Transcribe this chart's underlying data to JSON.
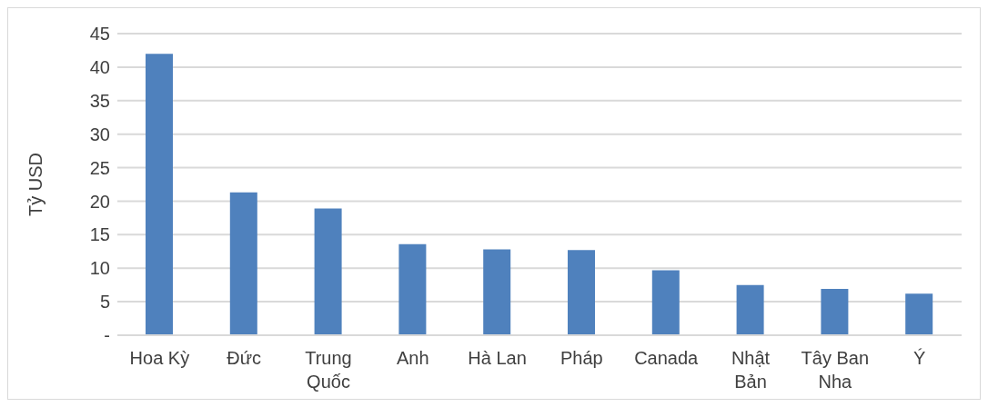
{
  "chart_data": {
    "type": "bar",
    "ylabel": "Tỷ USD",
    "categories": [
      "Hoa Kỳ",
      "Đức",
      "Trung Quốc",
      "Anh",
      "Hà Lan",
      "Pháp",
      "Canada",
      "Nhật Bản",
      "Tây Ban Nha",
      "Ý"
    ],
    "values": [
      42.0,
      21.3,
      18.9,
      13.6,
      12.8,
      12.7,
      9.7,
      7.5,
      6.9,
      6.2
    ],
    "color": "#4f81bd",
    "ylim": [
      0,
      45
    ],
    "yticks": [
      {
        "value": 0,
        "label": "-"
      },
      5,
      10,
      15,
      20,
      25,
      30,
      35,
      40,
      45
    ],
    "grid": "y"
  }
}
